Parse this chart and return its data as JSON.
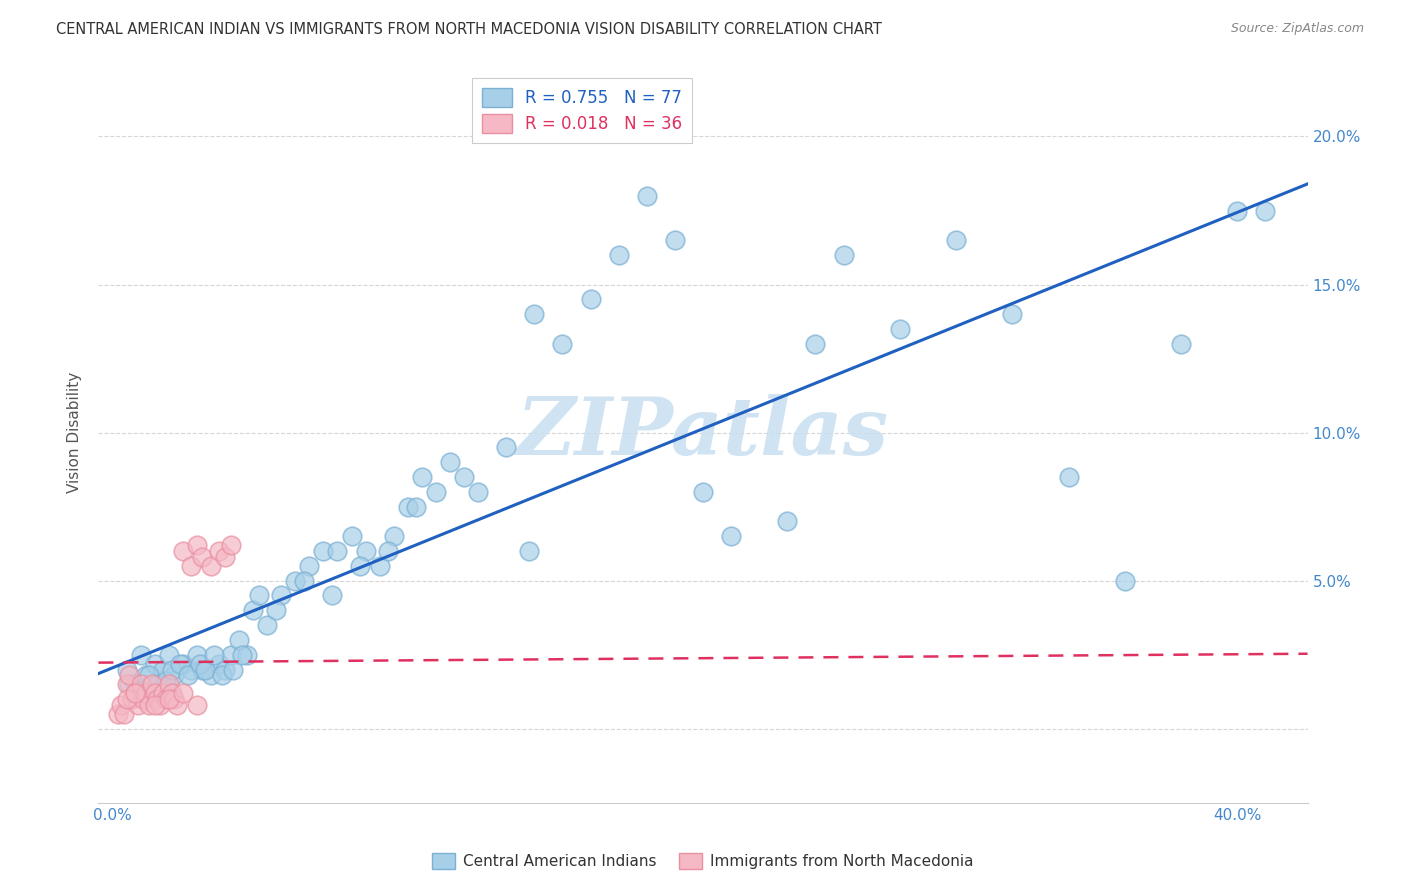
{
  "title": "CENTRAL AMERICAN INDIAN VS IMMIGRANTS FROM NORTH MACEDONIA VISION DISABILITY CORRELATION CHART",
  "source": "Source: ZipAtlas.com",
  "ylabel": "Vision Disability",
  "blue_R": 0.755,
  "blue_N": 77,
  "pink_R": 0.018,
  "pink_N": 36,
  "blue_color": "#a8cfe8",
  "pink_color": "#f5b8c4",
  "blue_edge_color": "#7ab0d4",
  "pink_edge_color": "#e890a0",
  "blue_line_color": "#2060c0",
  "pink_line_color": "#e03060",
  "watermark": "ZIPatlas",
  "watermark_color": "#c8dff0",
  "grid_color": "#cccccc",
  "y_ticks": [
    0.0,
    0.05,
    0.1,
    0.15,
    0.2
  ],
  "right_y_labels": [
    "",
    "5.0%",
    "10.0%",
    "15.0%",
    "20.0%"
  ],
  "right_label_color": "#4488cc",
  "xlim": [
    -0.005,
    0.425
  ],
  "ylim": [
    -0.025,
    0.225
  ],
  "blue_scatter_x": [
    0.005,
    0.008,
    0.01,
    0.012,
    0.015,
    0.018,
    0.02,
    0.022,
    0.025,
    0.028,
    0.03,
    0.032,
    0.035,
    0.038,
    0.04,
    0.042,
    0.045,
    0.048,
    0.05,
    0.055,
    0.06,
    0.065,
    0.07,
    0.075,
    0.08,
    0.085,
    0.09,
    0.095,
    0.1,
    0.105,
    0.11,
    0.115,
    0.12,
    0.125,
    0.13,
    0.14,
    0.15,
    0.16,
    0.17,
    0.18,
    0.19,
    0.2,
    0.22,
    0.24,
    0.26,
    0.28,
    0.3,
    0.32,
    0.34,
    0.36,
    0.38,
    0.4,
    0.41,
    0.006,
    0.009,
    0.013,
    0.016,
    0.019,
    0.021,
    0.024,
    0.027,
    0.031,
    0.033,
    0.036,
    0.039,
    0.043,
    0.046,
    0.052,
    0.058,
    0.068,
    0.078,
    0.088,
    0.098,
    0.108,
    0.148,
    0.21,
    0.25
  ],
  "blue_scatter_y": [
    0.02,
    0.015,
    0.025,
    0.018,
    0.022,
    0.02,
    0.025,
    0.018,
    0.022,
    0.02,
    0.025,
    0.02,
    0.018,
    0.022,
    0.02,
    0.025,
    0.03,
    0.025,
    0.04,
    0.035,
    0.045,
    0.05,
    0.055,
    0.06,
    0.06,
    0.065,
    0.06,
    0.055,
    0.065,
    0.075,
    0.085,
    0.08,
    0.09,
    0.085,
    0.08,
    0.095,
    0.14,
    0.13,
    0.145,
    0.16,
    0.18,
    0.165,
    0.065,
    0.07,
    0.16,
    0.135,
    0.165,
    0.14,
    0.085,
    0.05,
    0.13,
    0.175,
    0.175,
    0.015,
    0.012,
    0.018,
    0.015,
    0.016,
    0.02,
    0.022,
    0.018,
    0.022,
    0.02,
    0.025,
    0.018,
    0.02,
    0.025,
    0.045,
    0.04,
    0.05,
    0.045,
    0.055,
    0.06,
    0.075,
    0.06,
    0.08,
    0.13
  ],
  "pink_scatter_x": [
    0.002,
    0.003,
    0.004,
    0.005,
    0.006,
    0.007,
    0.008,
    0.009,
    0.01,
    0.011,
    0.012,
    0.013,
    0.014,
    0.015,
    0.016,
    0.017,
    0.018,
    0.019,
    0.02,
    0.021,
    0.022,
    0.023,
    0.025,
    0.028,
    0.03,
    0.032,
    0.035,
    0.038,
    0.04,
    0.042,
    0.005,
    0.008,
    0.015,
    0.02,
    0.025,
    0.03
  ],
  "pink_scatter_y": [
    0.005,
    0.008,
    0.005,
    0.015,
    0.018,
    0.01,
    0.012,
    0.008,
    0.015,
    0.01,
    0.012,
    0.008,
    0.015,
    0.012,
    0.01,
    0.008,
    0.012,
    0.01,
    0.015,
    0.012,
    0.01,
    0.008,
    0.06,
    0.055,
    0.062,
    0.058,
    0.055,
    0.06,
    0.058,
    0.062,
    0.01,
    0.012,
    0.008,
    0.01,
    0.012,
    0.008
  ],
  "legend_blue_label": "R = 0.755   N = 77",
  "legend_pink_label": "R = 0.018   N = 36",
  "bottom_label_blue": "Central American Indians",
  "bottom_label_pink": "Immigrants from North Macedonia"
}
